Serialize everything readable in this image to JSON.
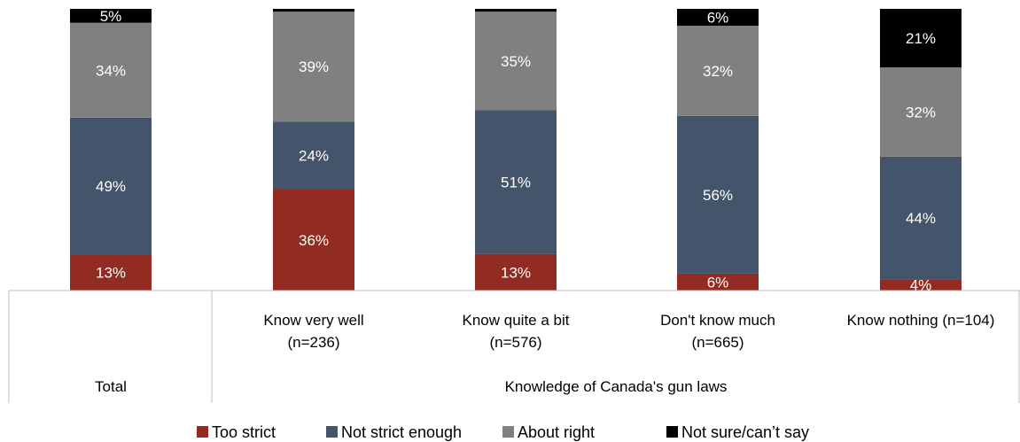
{
  "chart_data": {
    "type": "bar",
    "stacked": true,
    "ylim": [
      0,
      100
    ],
    "grid": false,
    "legend_position": "bottom",
    "categories": [
      {
        "lines": [
          "",
          ""
        ],
        "group": "Total"
      },
      {
        "lines": [
          "Know very well",
          "(n=236)"
        ],
        "group": "Knowledge of Canada's gun laws"
      },
      {
        "lines": [
          "Know quite a bit",
          "(n=576)"
        ],
        "group": "Knowledge of Canada's gun laws"
      },
      {
        "lines": [
          "Don't know much",
          "(n=665)"
        ],
        "group": "Knowledge of Canada's gun laws"
      },
      {
        "lines": [
          "Know nothing (n=104)",
          ""
        ],
        "group": "Knowledge of Canada's gun laws"
      }
    ],
    "groups": [
      {
        "label": "Total",
        "span": [
          0,
          0
        ]
      },
      {
        "label": "Knowledge of Canada's gun laws",
        "span": [
          1,
          4
        ]
      }
    ],
    "series": [
      {
        "name": "Too strict",
        "color": "#922b21",
        "values": [
          13,
          36,
          13,
          6,
          4
        ],
        "labels": [
          "13%",
          "36%",
          "13%",
          "6%",
          "4%"
        ]
      },
      {
        "name": "Not strict enough",
        "color": "#44546a",
        "values": [
          49,
          24,
          51,
          56,
          44
        ],
        "labels": [
          "49%",
          "24%",
          "51%",
          "56%",
          "44%"
        ]
      },
      {
        "name": "About right",
        "color": "#808080",
        "values": [
          34,
          39,
          35,
          32,
          32
        ],
        "labels": [
          "34%",
          "39%",
          "35%",
          "32%",
          "32%"
        ]
      },
      {
        "name": "Not sure/can’t say",
        "color": "#000000",
        "values": [
          5,
          1,
          1,
          6,
          21
        ],
        "labels": [
          "5%",
          "",
          "",
          "6%",
          "21%"
        ]
      }
    ]
  }
}
